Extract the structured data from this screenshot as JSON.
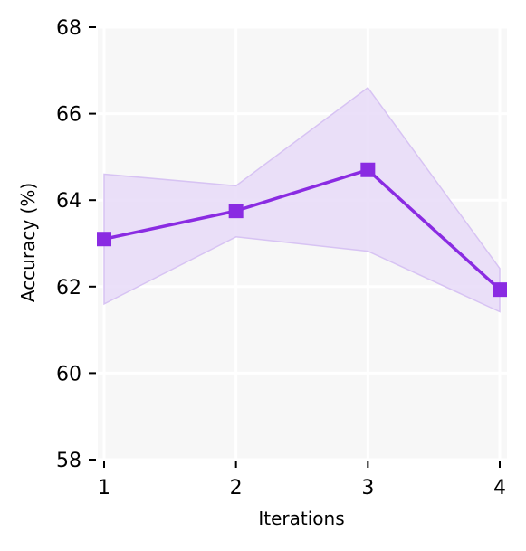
{
  "chart_data": {
    "type": "line",
    "title": "",
    "xlabel": "Iterations",
    "ylabel": "Accuracy (%)",
    "x": [
      1,
      2,
      3,
      4
    ],
    "x_tick_labels": [
      "1",
      "2",
      "3",
      "4"
    ],
    "y_ticks": [
      58,
      60,
      62,
      64,
      66,
      68
    ],
    "y_tick_labels": [
      "58",
      "60",
      "62",
      "64",
      "66",
      "68"
    ],
    "xlim": [
      1,
      4
    ],
    "ylim": [
      58,
      68
    ],
    "grid": true,
    "legend": "none",
    "series": [
      {
        "values": [
          63.1,
          63.75,
          64.7,
          61.93
        ],
        "lower": [
          61.6,
          63.15,
          62.82,
          61.42
        ],
        "upper": [
          64.6,
          64.33,
          66.6,
          62.42
        ],
        "marker": "square",
        "color": "#8a2be2",
        "band_color": "#e7dbf8"
      }
    ],
    "background_color": "#f7f7f7",
    "grid_color": "#ffffff"
  }
}
